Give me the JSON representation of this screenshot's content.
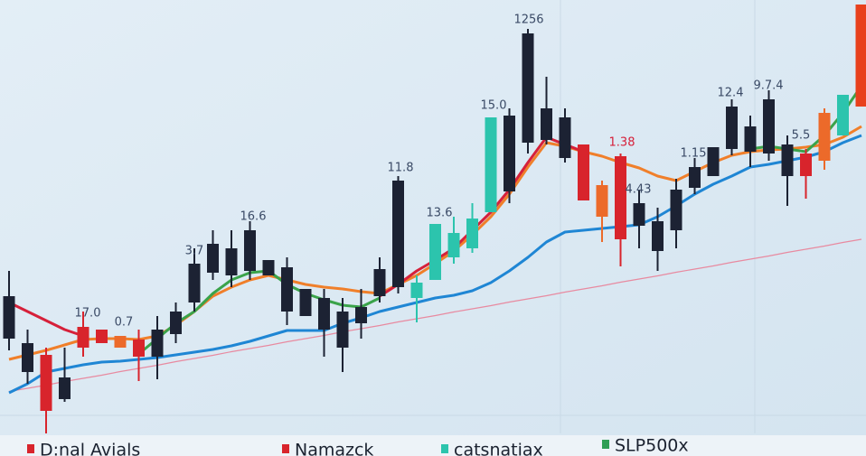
{
  "chart_data": {
    "type": "candlestick",
    "categories": [
      null,
      null,
      null,
      null,
      null,
      null,
      null,
      null,
      null,
      null,
      null,
      null,
      null,
      null,
      null,
      null,
      null,
      null,
      null,
      null,
      null,
      null,
      null,
      null,
      null,
      null,
      null,
      null,
      null,
      null,
      null,
      null,
      null,
      null,
      null,
      null,
      null,
      null,
      null,
      null,
      null,
      null,
      null,
      null,
      null,
      null,
      null
    ],
    "open": [
      34.4,
      24,
      21.4,
      16.4,
      27.6,
      27,
      25.6,
      24.8,
      27,
      31,
      41.6,
      46,
      45,
      49,
      42.4,
      40.8,
      36,
      34,
      31,
      32,
      40.4,
      60,
      37.4,
      50.4,
      48.4,
      51.6,
      74,
      74.4,
      92.6,
      76,
      74,
      68,
      59,
      65.4,
      55,
      51,
      58,
      63,
      67.4,
      76.4,
      72,
      78,
      68,
      66,
      75,
      79,
      99
    ],
    "close": [
      25,
      17.6,
      9,
      11.6,
      23,
      24,
      23,
      21,
      21,
      26,
      33,
      39.6,
      39,
      40,
      39,
      31,
      30,
      27,
      23,
      28.4,
      34.4,
      36.4,
      34,
      38,
      43,
      45,
      53,
      57.6,
      68.4,
      69,
      65,
      55.6,
      52,
      47,
      50,
      44.4,
      49,
      58.4,
      61,
      67,
      66.4,
      66,
      61,
      61,
      64.4,
      70,
      76.4
    ],
    "high": [
      40,
      27,
      23,
      23,
      31,
      27,
      25.6,
      27,
      30,
      33,
      45,
      49,
      49,
      51,
      42.4,
      43,
      36,
      36,
      34,
      36,
      43,
      61,
      39,
      50.4,
      52,
      55,
      74,
      76,
      93.6,
      83,
      76,
      68,
      60,
      66,
      58,
      54,
      60.4,
      65,
      67.4,
      78,
      74.4,
      80,
      70,
      67,
      76,
      79,
      99
    ],
    "low": [
      22.4,
      15,
      4,
      11,
      21,
      24,
      23,
      15.6,
      16,
      24,
      31,
      38,
      36.4,
      38,
      39,
      28,
      30,
      21,
      17.6,
      25,
      33,
      35,
      28.6,
      38,
      41.6,
      44,
      53,
      55,
      66,
      68,
      64,
      55.6,
      46.4,
      41,
      45,
      40,
      45,
      57,
      61,
      65.6,
      63,
      64.4,
      54.4,
      56,
      62.4,
      70,
      76.4
    ],
    "colors": [
      "#1c2233",
      "#1c2233",
      "#d8242c",
      "#1c2233",
      "#d8242c",
      "#d8242c",
      "#ec6a2a",
      "#d8242c",
      "#1c2233",
      "#1c2233",
      "#1c2233",
      "#1c2233",
      "#1c2233",
      "#1c2233",
      "#1c2233",
      "#1c2233",
      "#1c2233",
      "#1c2233",
      "#1c2233",
      "#1c2233",
      "#1c2233",
      "#1c2233",
      "#2cc4ad",
      "#2cc4ad",
      "#2cc4ad",
      "#2cc4ad",
      "#2cc4ad",
      "#1c2233",
      "#1c2233",
      "#1c2233",
      "#1c2233",
      "#d8242c",
      "#ec6a2a",
      "#d8242c",
      "#1c2233",
      "#1c2233",
      "#1c2233",
      "#1c2233",
      "#1c2233",
      "#1c2233",
      "#1c2233",
      "#1c2233",
      "#1c2233",
      "#d8242c",
      "#ec6a2a",
      "#2cc4ad",
      "#e8401c"
    ],
    "series": [
      {
        "color": "#e88aa0",
        "values": [
          13.3,
          14,
          14.7,
          15.5,
          16.2,
          16.9,
          17.7,
          18.4,
          19.1,
          19.9,
          20.6,
          21.3,
          22.1,
          22.8,
          23.5,
          24.3,
          25,
          25.7,
          26.5,
          27.2,
          27.9,
          28.7,
          29.4,
          30.1,
          30.9,
          31.6,
          32.3,
          33.1,
          33.8,
          34.5,
          35.3,
          36,
          36.7,
          37.5,
          38.2,
          38.9,
          39.7,
          40.4,
          41.1,
          41.9,
          42.6,
          43.3,
          44.1,
          44.8,
          45.5,
          46.3,
          47
        ]
      },
      {
        "color": "#1f86d4",
        "values": [
          13,
          15,
          17.6,
          18.4,
          19.2,
          19.8,
          20,
          20.4,
          20.8,
          21.4,
          22,
          22.6,
          23.4,
          24.4,
          25.6,
          26.8,
          26.8,
          26.8,
          28.4,
          29.6,
          31,
          32,
          33,
          34,
          34.6,
          35.6,
          37.4,
          40,
          43,
          46.4,
          48.6,
          49,
          49.4,
          49.8,
          50.2,
          52,
          54.4,
          57,
          59.2,
          61,
          63,
          63.6,
          64.4,
          65.2,
          66.4,
          68.4,
          70
        ]
      },
      {
        "color": "#f07f2a",
        "values": [
          20.4,
          21.4,
          22.4,
          23.6,
          24.8,
          25,
          25,
          24.8,
          25.6,
          28,
          31,
          34.4,
          36.4,
          38,
          39,
          38,
          37,
          36.4,
          36,
          35.4,
          35,
          37,
          39,
          41.6,
          44.4,
          48,
          52,
          57,
          63,
          68.4,
          67.6,
          66.4,
          65.4,
          64,
          62.8,
          61,
          60,
          62,
          64,
          65.6,
          66.4,
          66.8,
          67,
          67.4,
          68,
          69.6,
          72
        ]
      },
      {
        "color": "#d6203a",
        "values": [
          33,
          31,
          29,
          27,
          25.6,
          null,
          null,
          null,
          null,
          null,
          null,
          null,
          null,
          null,
          null,
          null,
          null,
          null,
          null,
          null,
          34.4,
          37,
          40,
          42.4,
          45,
          49,
          53,
          58,
          64,
          69.6,
          68,
          66.4,
          null,
          null,
          null,
          null,
          null,
          null,
          null,
          null,
          null,
          null,
          null,
          null,
          null,
          null,
          null
        ]
      },
      {
        "color": "#3aa34a",
        "values": [
          null,
          null,
          null,
          null,
          null,
          null,
          null,
          21.6,
          25,
          28.4,
          31,
          35,
          38,
          39.6,
          40,
          37,
          35,
          33.6,
          32.4,
          32,
          34,
          null,
          null,
          null,
          null,
          null,
          null,
          null,
          null,
          null,
          null,
          null,
          null,
          null,
          null,
          null,
          null,
          null,
          null,
          null,
          67,
          67.6,
          67,
          66.4,
          70,
          75,
          81
        ]
      }
    ],
    "ylim": [
      0,
      100
    ],
    "annotations": [
      "1256",
      "15.0",
      "11.8",
      "13.6",
      "16.6",
      "3.7",
      "17.0",
      "0.7",
      "1.38",
      "4.43",
      "1.15",
      "12.4",
      "9.7.4",
      "5.5"
    ],
    "legend": [
      {
        "name": "D:nal Avials",
        "color": "#d8242c"
      },
      {
        "name": "Namazck",
        "color": "#d8242c"
      },
      {
        "name": "catsnatiax",
        "color": "#2cc4ad"
      },
      {
        "name": "SLP500x",
        "color": "#2f9e55"
      }
    ]
  }
}
